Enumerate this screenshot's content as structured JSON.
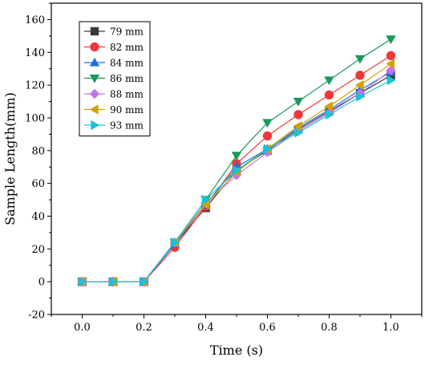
{
  "chart_data": {
    "type": "line",
    "xlabel": "Time (s)",
    "ylabel": "Sample Length(mm)",
    "xlim": [
      -0.1,
      1.1
    ],
    "ylim": [
      -20,
      170
    ],
    "xticks": [
      "0.0",
      "0.2",
      "0.4",
      "0.6",
      "0.8",
      "1.0"
    ],
    "yticks": [
      "-20",
      "0",
      "20",
      "40",
      "60",
      "80",
      "100",
      "120",
      "140",
      "160"
    ],
    "x": [
      0.0,
      0.1,
      0.2,
      0.3,
      0.4,
      0.5,
      0.6,
      0.7,
      0.8,
      0.9,
      1.0
    ],
    "grid": false,
    "legend_position": "top-left",
    "series": [
      {
        "name": "79 mm",
        "color": "#3a3a3a",
        "marker": "square",
        "values": [
          0,
          0,
          0,
          23,
          45,
          68,
          80,
          93,
          104,
          115,
          126
        ]
      },
      {
        "name": "82 mm",
        "color": "#f0373a",
        "marker": "circle",
        "values": [
          0,
          0,
          0,
          21,
          46,
          72,
          89,
          102,
          114,
          126,
          138
        ]
      },
      {
        "name": "84 mm",
        "color": "#1f6fe0",
        "marker": "triangle-up",
        "values": [
          0,
          0,
          0,
          23,
          47,
          70,
          81,
          94,
          105,
          117,
          128
        ]
      },
      {
        "name": "86 mm",
        "color": "#1a9a5a",
        "marker": "triangle-down",
        "values": [
          0,
          0,
          0,
          24,
          50,
          77,
          97,
          110,
          123,
          136,
          148
        ]
      },
      {
        "name": "88 mm",
        "color": "#c275e8",
        "marker": "diamond",
        "values": [
          0,
          0,
          0,
          24,
          48,
          65,
          79,
          92,
          103,
          115,
          129
        ]
      },
      {
        "name": "90 mm",
        "color": "#d1a200",
        "marker": "triangle-left",
        "values": [
          0,
          0,
          0,
          24,
          47,
          67,
          81,
          95,
          107,
          120,
          133
        ]
      },
      {
        "name": "93 mm",
        "color": "#19c2d8",
        "marker": "triangle-right",
        "values": [
          0,
          0,
          0,
          24,
          50,
          68,
          81,
          91,
          102,
          113,
          123
        ]
      }
    ]
  }
}
